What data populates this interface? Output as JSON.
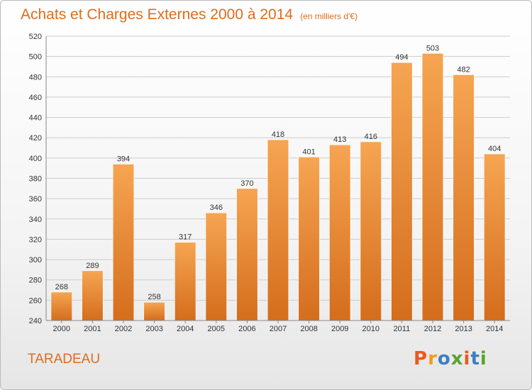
{
  "header": {
    "title": "Achats et Charges Externes 2000 à 2014",
    "subtitle": "(en milliers d'€)"
  },
  "footer": {
    "commune": "TARADEAU",
    "logo": "Proxiti"
  },
  "colors": {
    "title": "#e06c1a",
    "bar_top": "#f6a552",
    "bar_bottom": "#d46d1c",
    "grid": "#cccccc",
    "logo_letters": [
      "#e85b1c",
      "#f29c1c",
      "#3a7fc1",
      "#5aa42f",
      "#e85b1c",
      "#3a7fc1",
      "#5aa42f"
    ]
  },
  "chart_data": {
    "type": "bar",
    "title": "Achats et Charges Externes 2000 à 2014",
    "subtitle": "(en milliers d'€)",
    "categories": [
      "2000",
      "2001",
      "2002",
      "2003",
      "2004",
      "2005",
      "2006",
      "2007",
      "2008",
      "2009",
      "2010",
      "2011",
      "2012",
      "2013",
      "2014"
    ],
    "values": [
      268,
      289,
      394,
      258,
      317,
      346,
      370,
      418,
      401,
      413,
      416,
      494,
      503,
      482,
      404
    ],
    "ylim": [
      240,
      520
    ],
    "yticks": [
      240,
      260,
      280,
      300,
      320,
      340,
      360,
      380,
      400,
      420,
      440,
      460,
      480,
      500,
      520
    ],
    "grid": true,
    "legend": "none"
  }
}
